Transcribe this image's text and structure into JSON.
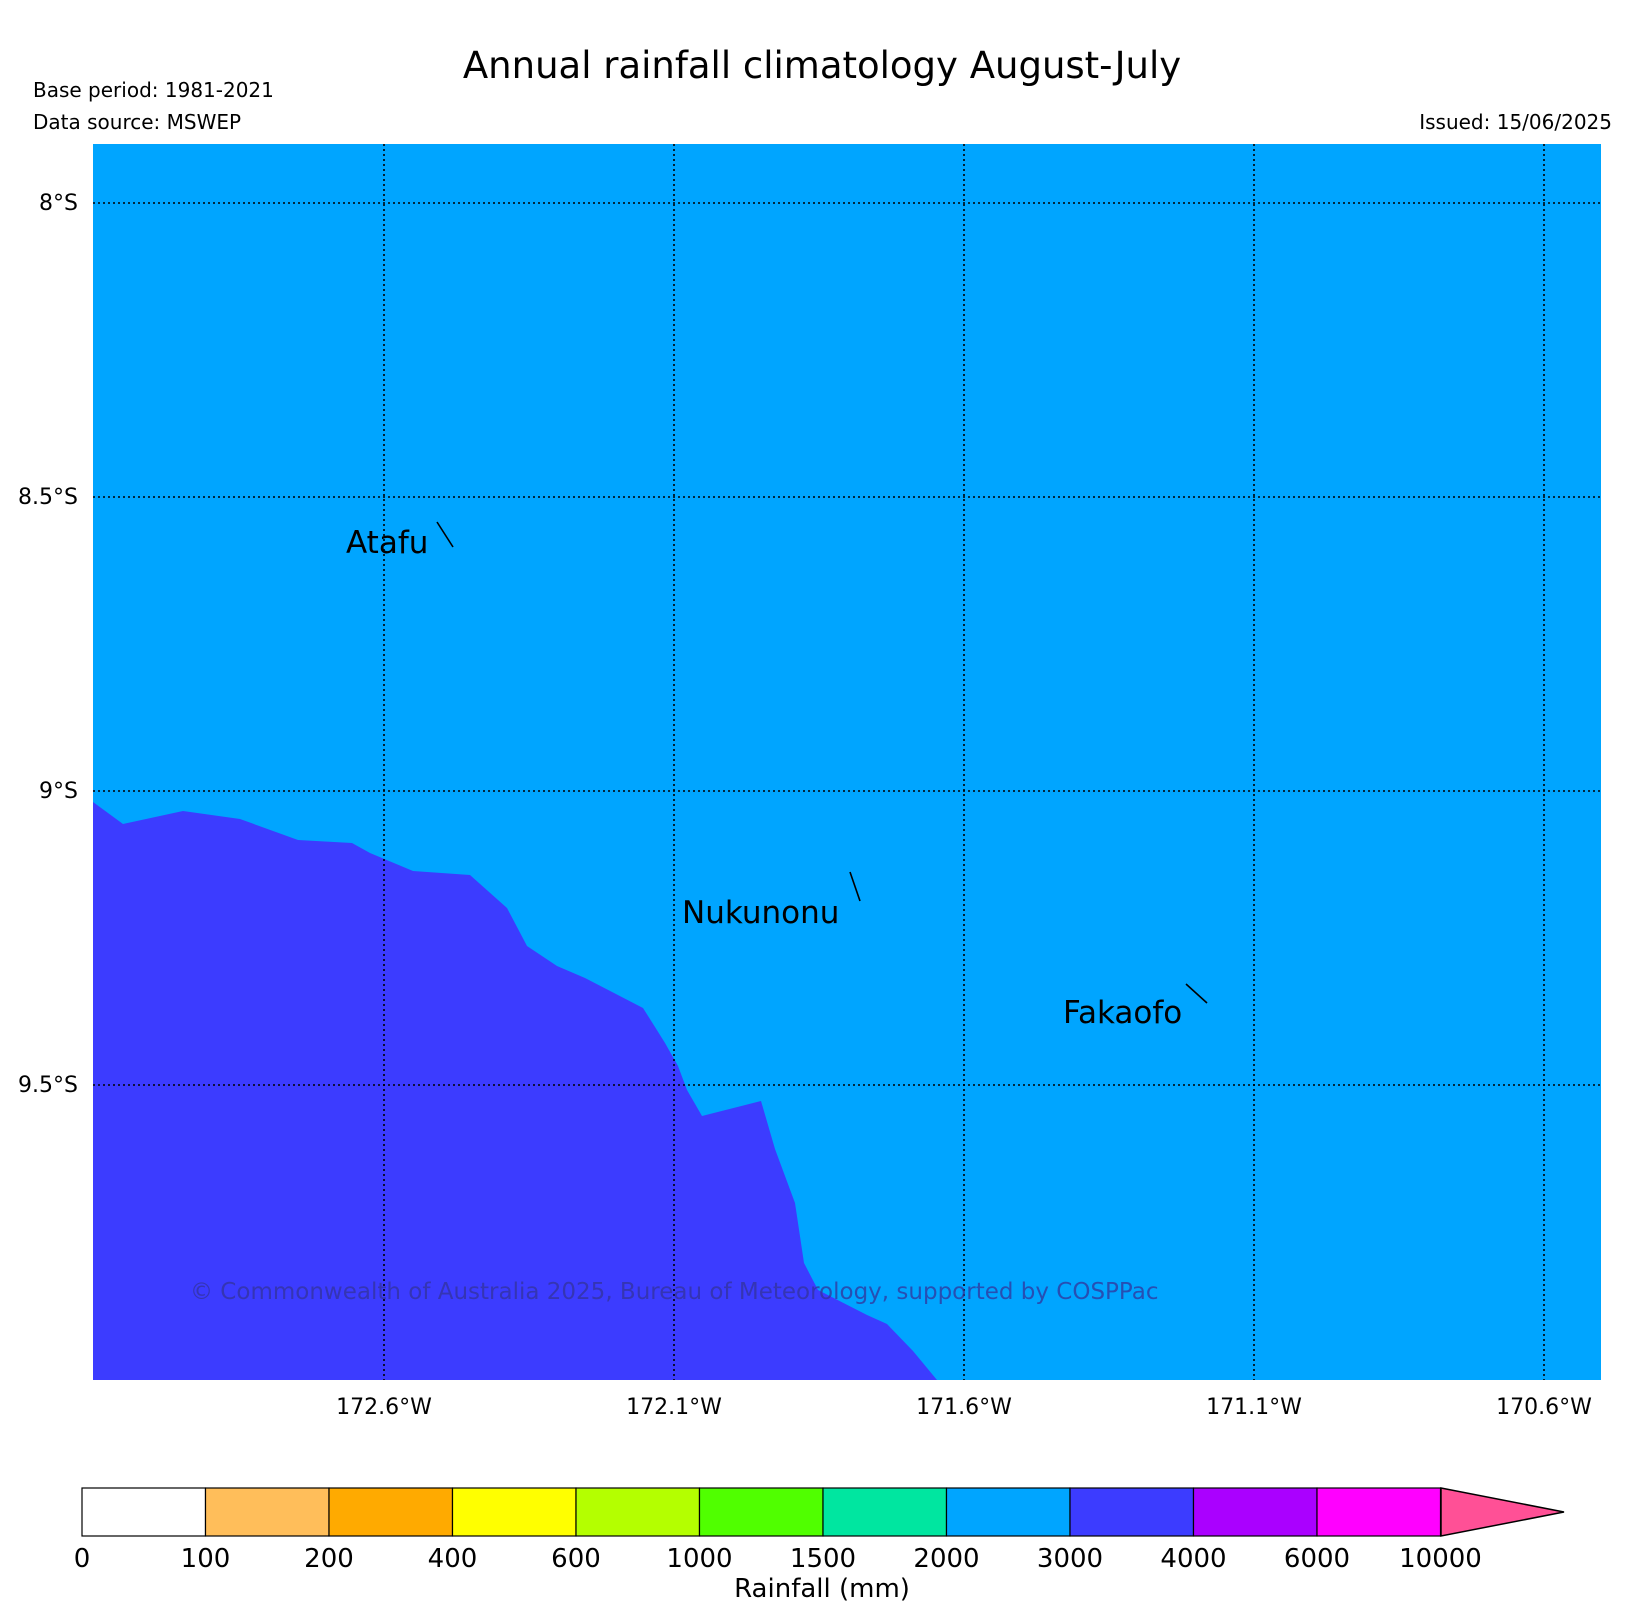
{
  "header": {
    "title": "Annual rainfall climatology August-July",
    "base_period": "Base period: 1981-2021",
    "data_source": "Data source: MSWEP",
    "issued": "Issued: 15/06/2025"
  },
  "map": {
    "background_color": "#00a5ff",
    "lat_labels": [
      "8°S",
      "8.5°S",
      "9°S",
      "9.5°S"
    ],
    "lon_labels": [
      "172.6°W",
      "172.1°W",
      "171.6°W",
      "171.1°W",
      "170.6°W"
    ],
    "places": [
      "Atafu",
      "Nukunonu",
      "Fakaofo"
    ],
    "rain_zones": [
      {
        "label": "2000-3000",
        "color": "#00a5ff"
      },
      {
        "label": "3000-4000",
        "color": "#3c3cff"
      }
    ],
    "copyright": "© Commonwealth of Australia 2025, Bureau of Meteorology, supported by COSPPac"
  },
  "colorbar": {
    "label": "Rainfall (mm)",
    "ticks": [
      "0",
      "100",
      "200",
      "400",
      "600",
      "1000",
      "1500",
      "2000",
      "3000",
      "4000",
      "6000",
      "10000"
    ],
    "colors": [
      "#ffffff",
      "#ffbe5a",
      "#ffaa00",
      "#ffff00",
      "#b4ff00",
      "#50ff00",
      "#00e6a0",
      "#00a5ff",
      "#3c3cff",
      "#aa00ff",
      "#ff00ff"
    ],
    "extend_color": "#ff5096"
  }
}
